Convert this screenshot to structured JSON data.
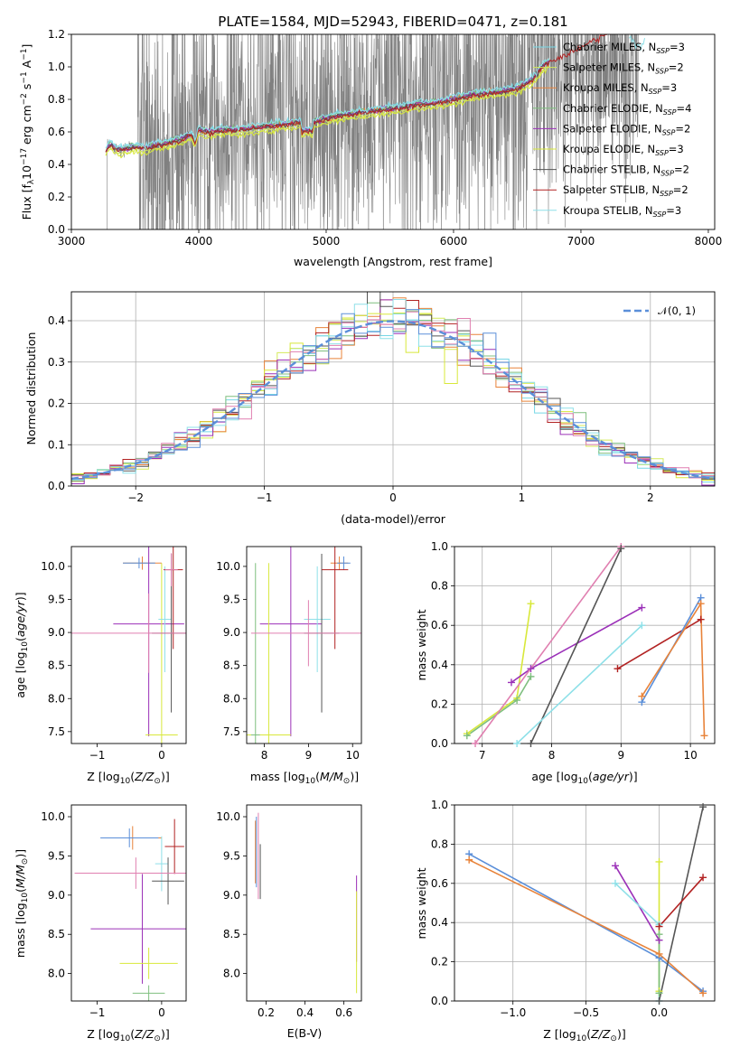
{
  "title": "PLATE=1584, MJD=52943, FIBERID=0471, z=0.181",
  "colors": {
    "chabrier_miles": "#76d7e6",
    "salpeter_miles": "#d4ea5a",
    "kroupa_miles": "#e8833a",
    "chabrier_elodie": "#7fbf7f",
    "salpeter_elodie": "#9b30b8",
    "kroupa_elodie": "#d8e83a",
    "chabrier_stelib": "#555555",
    "salpeter_stelib": "#b22222",
    "kroupa_stelib": "#8ee0e8",
    "data": "#808080",
    "normal": "#5b8fd9",
    "pink": "#e07fb0",
    "blue": "#5b8fd9",
    "grid": "#b0b0b0"
  },
  "chart_data": [
    {
      "type": "line",
      "id": "spectrum",
      "title": "PLATE=1584, MJD=52943, FIBERID=0471, z=0.181",
      "xlabel": "wavelength [Angstrom, rest frame]",
      "ylabel": "Flux [f_λ 10^-17 erg cm^-2 s^-1 A^-1]",
      "xlim": [
        3000,
        8050
      ],
      "ylim": [
        0,
        1.2
      ],
      "xticks": [
        "3000",
        "4000",
        "5000",
        "6000",
        "7000",
        "8000"
      ],
      "yticks": [
        "0.0",
        "0.2",
        "0.4",
        "0.6",
        "0.8",
        "1.0",
        "1.2"
      ],
      "grid": false,
      "legend_position": "top-right",
      "legend": [
        "Chabrier MILES, N_SSP=3",
        "Salpeter MILES, N_SSP=2",
        "Kroupa MILES, N_SSP=3",
        "Chabrier ELODIE, N_SSP=4",
        "Salpeter ELODIE, N_SSP=2",
        "Kroupa ELODIE, N_SSP=3",
        "Chabrier STELIB, N_SSP=2",
        "Salpeter STELIB, N_SSP=2",
        "Kroupa STELIB, N_SSP=3"
      ],
      "model_continuum": {
        "x": [
          3270,
          3300,
          3350,
          3400,
          3450,
          3500,
          3550,
          3600,
          3650,
          3700,
          3750,
          3800,
          3850,
          3900,
          3950,
          4000,
          4050,
          4100,
          4200,
          4300,
          4400,
          4500,
          4600,
          4700,
          4800,
          4850,
          4900,
          5000,
          5100,
          5200,
          5300,
          5400,
          5500,
          5600,
          5700,
          5800,
          5900,
          6000,
          6100,
          6200,
          6300,
          6400,
          6500,
          6600,
          6650,
          6700,
          6750
        ],
        "y": [
          0.48,
          0.52,
          0.5,
          0.49,
          0.5,
          0.51,
          0.5,
          0.5,
          0.52,
          0.52,
          0.53,
          0.54,
          0.55,
          0.57,
          0.58,
          0.62,
          0.6,
          0.6,
          0.61,
          0.61,
          0.62,
          0.63,
          0.64,
          0.65,
          0.66,
          0.67,
          0.66,
          0.68,
          0.7,
          0.71,
          0.72,
          0.73,
          0.74,
          0.75,
          0.77,
          0.77,
          0.78,
          0.8,
          0.82,
          0.83,
          0.84,
          0.85,
          0.87,
          0.91,
          0.95,
          1.0,
          1.03
        ]
      }
    },
    {
      "type": "line",
      "id": "residuals",
      "xlabel": "(data-model)/error",
      "ylabel": "Normed distribution",
      "xlim": [
        -2.5,
        2.5
      ],
      "ylim": [
        0,
        0.47
      ],
      "xticks": [
        "−2",
        "−1",
        "0",
        "1",
        "2"
      ],
      "yticks": [
        "0.0",
        "0.1",
        "0.2",
        "0.3",
        "0.4"
      ],
      "grid": true,
      "legend_position": "top-right",
      "legend": [
        "𝒩(0, 1)"
      ]
    },
    {
      "type": "scatter",
      "id": "age_vs_Z",
      "xlabel": "Z [log10(Z/Z⊙)]",
      "ylabel": "age [log10(age/yr)]",
      "xlim": [
        -1.4,
        0.38
      ],
      "ylim": [
        7.32,
        10.3
      ],
      "xticks": [
        "−1",
        "0"
      ],
      "yticks": [
        "7.5",
        "8.0",
        "8.5",
        "9.0",
        "9.5",
        "10.0"
      ],
      "points": [
        {
          "x": -0.3,
          "y": 10.05,
          "xerr": 0.3,
          "yerr": 0.1,
          "c": "kroupa_miles"
        },
        {
          "x": -0.35,
          "y": 10.05,
          "xerr": 0.25,
          "yerr": 0.08,
          "c": "blue"
        },
        {
          "x": -0.2,
          "y": 9.13,
          "xerr": 0.55,
          "yerr": 1.7,
          "c": "salpeter_elodie"
        },
        {
          "x": 0.0,
          "y": 7.45,
          "xerr": 0.25,
          "yerr": 2.6,
          "c": "kroupa_elodie"
        },
        {
          "x": 0.05,
          "y": 9.2,
          "xerr": 0.1,
          "yerr": 0.8,
          "c": "kroupa_stelib"
        },
        {
          "x": 0.15,
          "y": 8.99,
          "xerr": 0.3,
          "yerr": 1.2,
          "c": "chabrier_stelib"
        },
        {
          "x": 0.18,
          "y": 9.95,
          "xerr": 0.15,
          "yerr": 1.2,
          "c": "salpeter_stelib"
        },
        {
          "x": -0.2,
          "y": 8.99,
          "xerr": 1.2,
          "yerr": 0.6,
          "c": "pink"
        },
        {
          "x": 0.15,
          "y": 9.95,
          "xerr": 0.1,
          "yerr": 0.25,
          "c": "pink"
        }
      ]
    },
    {
      "type": "scatter",
      "id": "age_vs_mass",
      "xlabel": "mass [log10(M/M⊙)]",
      "xlim": [
        7.6,
        10.2
      ],
      "ylim": [
        7.32,
        10.3
      ],
      "xticks": [
        "8",
        "9",
        "10"
      ],
      "yticks": [
        "7.5",
        "8.0",
        "8.5",
        "9.0",
        "9.5",
        "10.0"
      ],
      "points": [
        {
          "x": 9.7,
          "y": 10.05,
          "xerr": 0.2,
          "yerr": 0.1,
          "c": "kroupa_miles"
        },
        {
          "x": 9.8,
          "y": 10.05,
          "xerr": 0.15,
          "yerr": 0.1,
          "c": "blue"
        },
        {
          "x": 8.6,
          "y": 9.13,
          "xerr": 0.7,
          "yerr": 1.7,
          "c": "salpeter_elodie"
        },
        {
          "x": 8.1,
          "y": 7.45,
          "xerr": 0.5,
          "yerr": 2.6,
          "c": "kroupa_elodie"
        },
        {
          "x": 9.2,
          "y": 9.2,
          "xerr": 0.3,
          "yerr": 0.8,
          "c": "kroupa_stelib"
        },
        {
          "x": 9.3,
          "y": 8.99,
          "xerr": 0.4,
          "yerr": 1.2,
          "c": "chabrier_stelib"
        },
        {
          "x": 9.6,
          "y": 9.95,
          "xerr": 0.3,
          "yerr": 1.2,
          "c": "salpeter_stelib"
        },
        {
          "x": 7.8,
          "y": 7.45,
          "xerr": 0.1,
          "yerr": 2.6,
          "c": "chabrier_elodie"
        },
        {
          "x": 9.0,
          "y": 8.99,
          "xerr": 1.3,
          "yerr": 0.5,
          "c": "pink"
        }
      ]
    },
    {
      "type": "line",
      "id": "massweight_vs_age",
      "xlabel": "age [log10(age/yr)]",
      "ylabel": "mass weight",
      "xlim": [
        6.6,
        10.35
      ],
      "ylim": [
        0,
        1.0
      ],
      "xticks": [
        "7",
        "8",
        "9",
        "10"
      ],
      "yticks": [
        "0.0",
        "0.2",
        "0.4",
        "0.6",
        "0.8",
        "1.0"
      ],
      "grid": true,
      "series": [
        {
          "c": "kroupa_elodie",
          "x": [
            6.78,
            7.5,
            7.7
          ],
          "y": [
            0.05,
            0.23,
            0.71
          ]
        },
        {
          "c": "chabrier_elodie",
          "x": [
            6.78,
            7.5,
            7.7
          ],
          "y": [
            0.04,
            0.22,
            0.34
          ]
        },
        {
          "c": "salpeter_elodie",
          "x": [
            7.42,
            7.7,
            9.3
          ],
          "y": [
            0.31,
            0.38,
            0.69
          ]
        },
        {
          "c": "pink",
          "x": [
            6.9,
            9.0
          ],
          "y": [
            0.0,
            1.0
          ]
        },
        {
          "c": "chabrier_stelib",
          "x": [
            7.7,
            9.0
          ],
          "y": [
            0.0,
            0.99
          ]
        },
        {
          "c": "kroupa_stelib",
          "x": [
            7.5,
            9.3
          ],
          "y": [
            0.0,
            0.6
          ]
        },
        {
          "c": "salpeter_stelib",
          "x": [
            8.95,
            10.15
          ],
          "y": [
            0.38,
            0.63
          ]
        },
        {
          "c": "blue",
          "x": [
            9.3,
            10.15
          ],
          "y": [
            0.21,
            0.74
          ]
        },
        {
          "c": "kroupa_miles",
          "x": [
            9.3,
            10.15,
            10.2
          ],
          "y": [
            0.24,
            0.71,
            0.04
          ]
        }
      ]
    },
    {
      "type": "scatter",
      "id": "mass_vs_Z",
      "xlabel": "Z [log10(Z/Z⊙)]",
      "ylabel": "mass [log10(M/M⊙)]",
      "xlim": [
        -1.4,
        0.38
      ],
      "ylim": [
        7.65,
        10.15
      ],
      "xticks": [
        "−1",
        "0"
      ],
      "yticks": [
        "8.0",
        "8.5",
        "9.0",
        "9.5",
        "10.0"
      ],
      "points": [
        {
          "x": -0.45,
          "y": 9.73,
          "xerr": 0.45,
          "yerr": 0.15,
          "c": "kroupa_miles"
        },
        {
          "x": -0.5,
          "y": 9.73,
          "xerr": 0.45,
          "yerr": 0.12,
          "c": "blue"
        },
        {
          "x": -0.3,
          "y": 8.57,
          "xerr": 0.8,
          "yerr": 0.7,
          "c": "salpeter_elodie"
        },
        {
          "x": -0.2,
          "y": 8.13,
          "xerr": 0.45,
          "yerr": 0.2,
          "c": "kroupa_elodie"
        },
        {
          "x": 0.0,
          "y": 9.4,
          "xerr": 0.1,
          "yerr": 0.35,
          "c": "kroupa_stelib"
        },
        {
          "x": 0.1,
          "y": 9.18,
          "xerr": 0.25,
          "yerr": 0.3,
          "c": "chabrier_stelib"
        },
        {
          "x": 0.2,
          "y": 9.62,
          "xerr": 0.15,
          "yerr": 0.35,
          "c": "salpeter_stelib"
        },
        {
          "x": -0.2,
          "y": 7.75,
          "xerr": 0.25,
          "yerr": 0.1,
          "c": "chabrier_elodie"
        },
        {
          "x": -0.4,
          "y": 9.28,
          "xerr": 0.95,
          "yerr": 0.2,
          "c": "pink"
        }
      ]
    },
    {
      "type": "scatter",
      "id": "mass_vs_ebv",
      "xlabel": "E(B-V)",
      "xlim": [
        0.1,
        0.69
      ],
      "ylim": [
        7.65,
        10.15
      ],
      "xticks": [
        "0.2",
        "0.4",
        "0.6"
      ],
      "yticks": [
        "8.0",
        "8.5",
        "9.0",
        "9.5",
        "10.0"
      ],
      "points": [
        {
          "x": 0.145,
          "y": 9.55,
          "xerr": 0,
          "yerr": 0.4,
          "c": "kroupa_miles"
        },
        {
          "x": 0.15,
          "y": 9.55,
          "xerr": 0,
          "yerr": 0.45,
          "c": "blue"
        },
        {
          "x": 0.16,
          "y": 9.5,
          "xerr": 0,
          "yerr": 0.55,
          "c": "pink"
        },
        {
          "x": 0.17,
          "y": 9.3,
          "xerr": 0,
          "yerr": 0.35,
          "c": "chabrier_stelib"
        },
        {
          "x": 0.665,
          "y": 8.7,
          "xerr": 0,
          "yerr": 0.55,
          "c": "salpeter_elodie"
        },
        {
          "x": 0.665,
          "y": 8.4,
          "xerr": 0,
          "yerr": 0.65,
          "c": "kroupa_elodie"
        }
      ]
    },
    {
      "type": "line",
      "id": "massweight_vs_Z",
      "xlabel": "Z [log10(Z/Z⊙)]",
      "ylabel": "mass weight",
      "xlim": [
        -1.4,
        0.38
      ],
      "ylim": [
        0,
        1.0
      ],
      "xticks": [
        "−1.0",
        "−0.5",
        "0.0"
      ],
      "yticks": [
        "0.0",
        "0.2",
        "0.4",
        "0.6",
        "0.8",
        "1.0"
      ],
      "grid": true,
      "series": [
        {
          "c": "blue",
          "x": [
            -1.3,
            0.0,
            0.3
          ],
          "y": [
            0.75,
            0.22,
            0.05
          ]
        },
        {
          "c": "kroupa_miles",
          "x": [
            -1.3,
            0.0,
            0.3
          ],
          "y": [
            0.72,
            0.24,
            0.04
          ]
        },
        {
          "c": "salpeter_elodie",
          "x": [
            -0.3,
            0.0
          ],
          "y": [
            0.69,
            0.31
          ]
        },
        {
          "c": "kroupa_stelib",
          "x": [
            -0.3,
            0.0,
            0.0
          ],
          "y": [
            0.6,
            0.39,
            0.0
          ]
        },
        {
          "c": "chabrier_stelib",
          "x": [
            0.0,
            0.3
          ],
          "y": [
            0.0,
            0.99
          ]
        },
        {
          "c": "salpeter_stelib",
          "x": [
            0.0,
            0.3
          ],
          "y": [
            0.38,
            0.63
          ]
        },
        {
          "c": "kroupa_elodie",
          "x": [
            0.0,
            0.0
          ],
          "y": [
            0.05,
            0.71
          ]
        },
        {
          "c": "chabrier_elodie",
          "x": [
            0.0,
            0.0
          ],
          "y": [
            0.04,
            0.34
          ]
        }
      ]
    }
  ]
}
